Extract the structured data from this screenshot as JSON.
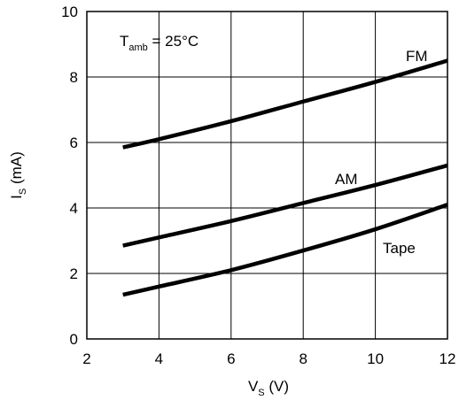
{
  "chart_data": {
    "type": "line",
    "xlabel": {
      "main": "V",
      "sub": "S",
      "unit": " (V)"
    },
    "ylabel": {
      "main": "I",
      "sub": "S",
      "unit": " (mA)"
    },
    "xlim": [
      2,
      12
    ],
    "ylim": [
      0,
      10
    ],
    "xticks": [
      2,
      4,
      6,
      8,
      10,
      12
    ],
    "yticks": [
      0,
      2,
      4,
      6,
      8,
      10
    ],
    "grid": true,
    "annotation": {
      "main": "T",
      "sub": "amb",
      "rest": " = 25°C"
    },
    "series": [
      {
        "name": "FM",
        "x": [
          3,
          4,
          6,
          8,
          10,
          12
        ],
        "y": [
          5.85,
          6.1,
          6.65,
          7.25,
          7.85,
          8.5
        ]
      },
      {
        "name": "AM",
        "x": [
          3,
          4,
          6,
          8,
          10,
          12
        ],
        "y": [
          2.85,
          3.1,
          3.6,
          4.15,
          4.7,
          5.3
        ]
      },
      {
        "name": "Tape",
        "x": [
          3,
          4,
          6,
          8,
          10,
          12
        ],
        "y": [
          1.35,
          1.6,
          2.1,
          2.7,
          3.35,
          4.1
        ]
      }
    ],
    "colors": {
      "line": "#000000",
      "grid": "#000000"
    }
  }
}
